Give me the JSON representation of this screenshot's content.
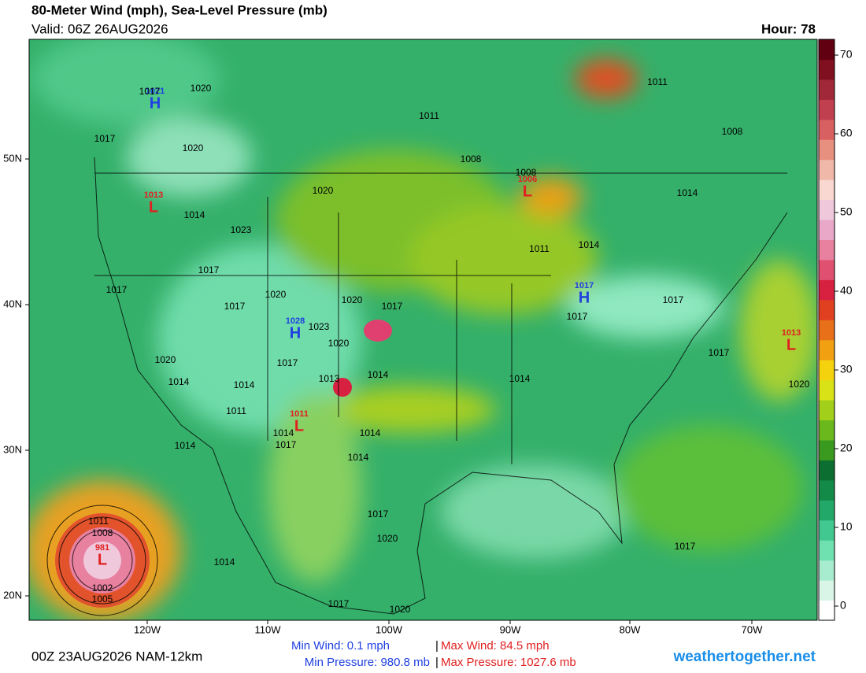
{
  "header": {
    "title": "80-Meter Wind (mph), Sea-Level Pressure (mb)",
    "valid": "Valid: 06Z 26AUG2026",
    "hour": "Hour: 78"
  },
  "map": {
    "lat_labels": [
      "50N",
      "40N",
      "30N",
      "20N"
    ],
    "lon_labels": [
      "120W",
      "110W",
      "100W",
      "90W",
      "80W",
      "70W"
    ],
    "pressure_centers": [
      {
        "symbol": "H",
        "value": "1021"
      },
      {
        "symbol": "L",
        "value": "1013"
      },
      {
        "symbol": "L",
        "value": "1006"
      },
      {
        "symbol": "H",
        "value": "1017"
      },
      {
        "symbol": "H",
        "value": "1028"
      },
      {
        "symbol": "L",
        "value": "1011"
      },
      {
        "symbol": "L",
        "value": "1013"
      },
      {
        "symbol": "L",
        "value": "981"
      }
    ],
    "isobar_labels": [
      "1017",
      "1020",
      "1017",
      "1020",
      "1014",
      "1020",
      "1023",
      "1017",
      "1017",
      "1017",
      "1020",
      "1020",
      "1017",
      "1023",
      "1020",
      "1017",
      "1013",
      "1014",
      "1014",
      "1014",
      "1020",
      "1011",
      "1014",
      "1017",
      "1014",
      "1014",
      "1014",
      "1017",
      "1020",
      "1014",
      "1017",
      "1020",
      "1011",
      "1008",
      "1002",
      "1005",
      "1011",
      "1008",
      "1008",
      "1011",
      "1008",
      "1014",
      "1011",
      "1014",
      "1017",
      "1017",
      "1017",
      "1020",
      "1014",
      "1017"
    ]
  },
  "colorbar": {
    "ticks": [
      0,
      10,
      20,
      30,
      40,
      50,
      60,
      70
    ],
    "colors": [
      "#ffffff",
      "#d8f5e8",
      "#a8ecd0",
      "#6fe0b0",
      "#40c890",
      "#22a868",
      "#138a48",
      "#0c6e30",
      "#3a9a20",
      "#6ab81c",
      "#a2cf1a",
      "#d8e216",
      "#f4d20e",
      "#f0a010",
      "#e87018",
      "#e04020",
      "#d82040",
      "#e05070",
      "#e880a0",
      "#eaa8c8",
      "#f0c8dc",
      "#f8d8d0",
      "#f0b8a8",
      "#e89080",
      "#d86060",
      "#c04050",
      "#a02838",
      "#801020",
      "#600010"
    ]
  },
  "footer": {
    "run": "00Z 23AUG2026 NAM-12km",
    "min_wind": "Min Wind:  0.1 mph",
    "max_wind": "Max Wind:  84.5 mph",
    "min_pressure": "Min Pressure: 980.8 mb",
    "max_pressure": "Max Pressure: 1027.6 mb",
    "separator": "|",
    "site": "weathertogether.net"
  }
}
